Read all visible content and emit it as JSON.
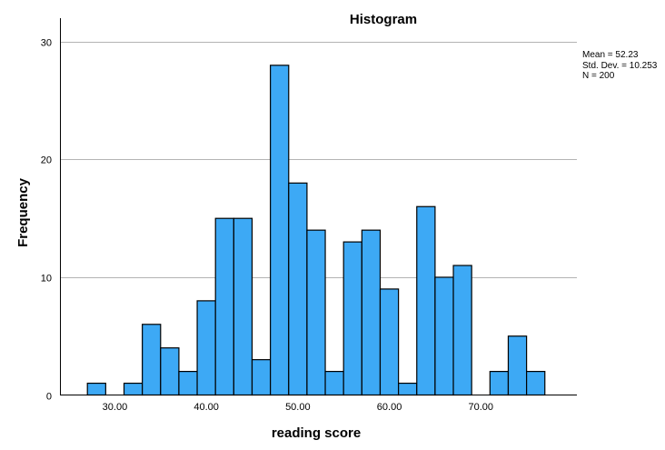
{
  "chart_data": {
    "type": "bar",
    "title": "Histogram",
    "xlabel": "reading score",
    "ylabel": "Frequency",
    "xlim": [
      24.0,
      80.5
    ],
    "ylim": [
      0,
      32
    ],
    "xticks": [
      "30.00",
      "40.00",
      "50.00",
      "60.00",
      "70.00"
    ],
    "xtick_values": [
      30,
      40,
      50,
      60,
      70
    ],
    "yticks": [
      "0",
      "10",
      "20",
      "30"
    ],
    "ytick_values": [
      0,
      10,
      20,
      30
    ],
    "bin_width": 2,
    "bin_starts": [
      27,
      29,
      31,
      33,
      35,
      37,
      39,
      41,
      43,
      45,
      47,
      49,
      51,
      53,
      55,
      57,
      59,
      61,
      63,
      65,
      67,
      69,
      71,
      73,
      75
    ],
    "values": [
      1,
      0,
      1,
      6,
      4,
      2,
      8,
      15,
      15,
      3,
      28,
      18,
      14,
      2,
      13,
      14,
      9,
      1,
      16,
      10,
      11,
      0,
      2,
      5,
      2
    ],
    "grid": "horizontal",
    "bar_color": "#3DA9F5",
    "stats": {
      "mean": "Mean = 52.23",
      "std": "Std. Dev. = 10.253",
      "n": "N = 200"
    }
  }
}
